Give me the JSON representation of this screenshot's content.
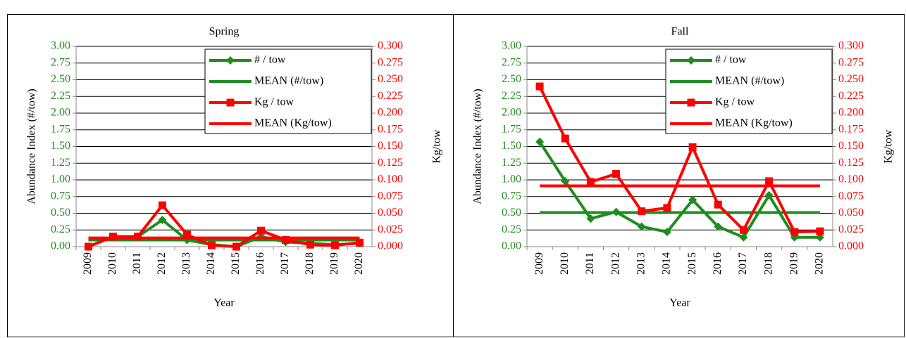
{
  "chart_data": [
    {
      "type": "line",
      "title": "Spring",
      "x_label": "Year",
      "y_label": "Abundance Index (#/tow)",
      "y2_label": "Kg/tow",
      "categories": [
        "2009",
        "2010",
        "2011",
        "2012",
        "2013",
        "2014",
        "2015",
        "2016",
        "2017",
        "2018",
        "2019",
        "2020"
      ],
      "series": [
        {
          "name": "# / tow",
          "color": "#1e8c1e",
          "marker": "diamond",
          "values": [
            0.0,
            0.15,
            0.15,
            0.4,
            0.1,
            0.03,
            0.0,
            0.15,
            0.07,
            0.05,
            0.03,
            0.05
          ]
        },
        {
          "name": "MEAN (#/tow)",
          "color": "#1e8c1e",
          "values": [
            0.1,
            0.1,
            0.1,
            0.1,
            0.1,
            0.1,
            0.1,
            0.1,
            0.1,
            0.1,
            0.1,
            0.1
          ]
        },
        {
          "name": "Kg / tow",
          "color": "#ff0000",
          "marker": "square",
          "axis": "y2",
          "values": [
            0.0,
            0.015,
            0.015,
            0.062,
            0.018,
            0.002,
            0.0,
            0.024,
            0.01,
            0.003,
            0.002,
            0.006
          ]
        },
        {
          "name": "MEAN (Kg/tow)",
          "color": "#ff0000",
          "axis": "y2",
          "values": [
            0.013,
            0.013,
            0.013,
            0.013,
            0.013,
            0.013,
            0.013,
            0.013,
            0.013,
            0.013,
            0.013,
            0.013
          ]
        }
      ],
      "ylim": [
        0,
        3
      ],
      "y2lim": [
        0,
        0.3
      ],
      "grid": true,
      "legend": "top-right",
      "yticks": [
        {
          "value": 0,
          "label": "0.00"
        },
        {
          "value": 0.25,
          "label": "0.25"
        },
        {
          "value": 0.5,
          "label": "0.50"
        },
        {
          "value": 0.75,
          "label": "0.75"
        },
        {
          "value": 1,
          "label": "1.00"
        },
        {
          "value": 1.25,
          "label": "1.25"
        },
        {
          "value": 1.5,
          "label": "1.50"
        },
        {
          "value": 1.75,
          "label": "1.75"
        },
        {
          "value": 2,
          "label": "2.00"
        },
        {
          "value": 2.25,
          "label": "2.25"
        },
        {
          "value": 2.5,
          "label": "2.50"
        },
        {
          "value": 2.75,
          "label": "2.75"
        },
        {
          "value": 3,
          "label": "3.00"
        }
      ],
      "y2ticks": [
        {
          "value": 0,
          "label": "0.000"
        },
        {
          "value": 0.025,
          "label": "0.025"
        },
        {
          "value": 0.05,
          "label": "0.050"
        },
        {
          "value": 0.075,
          "label": "0.075"
        },
        {
          "value": 0.1,
          "label": "0.100"
        },
        {
          "value": 0.125,
          "label": "0.125"
        },
        {
          "value": 0.15,
          "label": "0.150"
        },
        {
          "value": 0.175,
          "label": "0.175"
        },
        {
          "value": 0.2,
          "label": "0.200"
        },
        {
          "value": 0.225,
          "label": "0.225"
        },
        {
          "value": 0.25,
          "label": "0.250"
        },
        {
          "value": 0.275,
          "label": "0.275"
        },
        {
          "value": 0.3,
          "label": "0.300"
        }
      ]
    },
    {
      "type": "line",
      "title": "Fall",
      "x_label": "Year",
      "y_label": "Abundance Index (#/tow)",
      "y2_label": "Kg/tow",
      "categories": [
        "2009",
        "2010",
        "2011",
        "2012",
        "2013",
        "2014",
        "2015",
        "2016",
        "2017",
        "2018",
        "2019",
        "2020"
      ],
      "series": [
        {
          "name": "# / tow",
          "color": "#1e8c1e",
          "marker": "diamond",
          "values": [
            1.57,
            0.98,
            0.42,
            0.52,
            0.3,
            0.22,
            0.7,
            0.3,
            0.14,
            0.77,
            0.14,
            0.14
          ]
        },
        {
          "name": "MEAN (#/tow)",
          "color": "#1e8c1e",
          "values": [
            0.51,
            0.51,
            0.51,
            0.51,
            0.51,
            0.51,
            0.51,
            0.51,
            0.51,
            0.51,
            0.51,
            0.51
          ]
        },
        {
          "name": "Kg / tow",
          "color": "#ff0000",
          "marker": "square",
          "axis": "y2",
          "values": [
            0.24,
            0.162,
            0.097,
            0.109,
            0.053,
            0.058,
            0.149,
            0.063,
            0.025,
            0.098,
            0.022,
            0.023
          ]
        },
        {
          "name": "MEAN (Kg/tow)",
          "color": "#ff0000",
          "axis": "y2",
          "values": [
            0.091,
            0.091,
            0.091,
            0.091,
            0.091,
            0.091,
            0.091,
            0.091,
            0.091,
            0.091,
            0.091,
            0.091
          ]
        }
      ],
      "ylim": [
        0,
        3
      ],
      "y2lim": [
        0,
        0.3
      ],
      "grid": true,
      "legend": "top-right",
      "yticks": [
        {
          "value": 0,
          "label": "0.00"
        },
        {
          "value": 0.25,
          "label": "0.25"
        },
        {
          "value": 0.5,
          "label": "0.50"
        },
        {
          "value": 0.75,
          "label": "0.75"
        },
        {
          "value": 1,
          "label": "1.00"
        },
        {
          "value": 1.25,
          "label": "1.25"
        },
        {
          "value": 1.5,
          "label": "1.50"
        },
        {
          "value": 1.75,
          "label": "1.75"
        },
        {
          "value": 2,
          "label": "2.00"
        },
        {
          "value": 2.25,
          "label": "2.25"
        },
        {
          "value": 2.5,
          "label": "2.50"
        },
        {
          "value": 2.75,
          "label": "2.75"
        },
        {
          "value": 3,
          "label": "3.00"
        }
      ],
      "y2ticks": [
        {
          "value": 0,
          "label": "0.000"
        },
        {
          "value": 0.025,
          "label": "0.025"
        },
        {
          "value": 0.05,
          "label": "0.050"
        },
        {
          "value": 0.075,
          "label": "0.075"
        },
        {
          "value": 0.1,
          "label": "0.100"
        },
        {
          "value": 0.125,
          "label": "0.125"
        },
        {
          "value": 0.15,
          "label": "0.150"
        },
        {
          "value": 0.175,
          "label": "0.175"
        },
        {
          "value": 0.2,
          "label": "0.200"
        },
        {
          "value": 0.225,
          "label": "0.225"
        },
        {
          "value": 0.25,
          "label": "0.250"
        },
        {
          "value": 0.275,
          "label": "0.275"
        },
        {
          "value": 0.3,
          "label": "0.300"
        }
      ]
    }
  ]
}
